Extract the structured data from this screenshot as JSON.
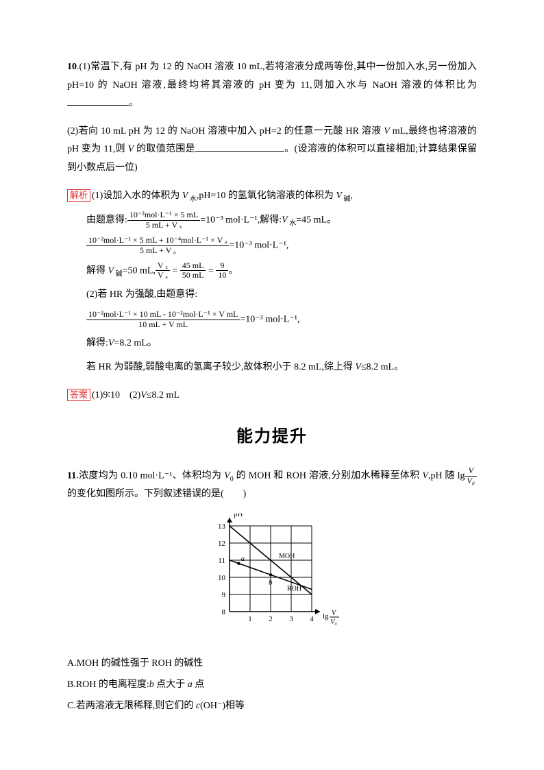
{
  "q10": {
    "number": "10",
    "part1_text": ".(1)常温下,有 pH 为 12 的 NaOH 溶液 10 mL,若将溶液分成两等份,其中一份加入水,另一份加入 pH=10 的 NaOH 溶液,最终均将其溶液的 pH 变为 11,则加入水与 NaOH 溶液的体积比为",
    "part1_suffix": "。",
    "part2_text": "(2)若向 10 mL pH 为 12 的 NaOH 溶液中加入 pH=2 的任意一元酸 HR 溶液 ",
    "part2_text2": " mL,最终也将溶液的 pH 变为 11,则 ",
    "part2_text3": " 的取值范围是",
    "part2_suffix": "。(设溶液的体积可以直接相加;计算结果保留到小数点后一位)",
    "analysis_label": "解析",
    "analysis_intro": "(1)设加入水的体积为 ",
    "analysis_intro2": ",pH=10 的氢氧化钠溶液的体积为 ",
    "step1_pre": "由题意得:",
    "frac1_num": "10⁻²mol·L⁻¹ × 5 mL",
    "frac1_den": "5 mL + V ₓ",
    "step1_post": "=10⁻³ mol·L⁻¹,解得:",
    "step1_result": "=45 mL。",
    "frac2_num": "10⁻²mol·L⁻¹ × 5 mL + 10⁻⁴mol·L⁻¹ × V ₐ",
    "frac2_den": "5 mL + V ₐ",
    "step2_post": "=10⁻³ mol·L⁻¹,",
    "step3_pre": "解得 ",
    "step3_mid": "=50 mL,",
    "frac3a_num": "V ₓ",
    "frac3a_den": "V ₐ",
    "frac3b_num": "45 mL",
    "frac3b_den": "50 mL",
    "frac3c_num": "9",
    "frac3c_den": "10",
    "step3_end": "。",
    "step4": "(2)若 HR 为强酸,由题意得:",
    "frac4_num": "10⁻²mol·L⁻¹ × 10 mL - 10⁻²mol·L⁻¹ × V mL",
    "frac4_den": "10 mL + V mL",
    "step4_post": "=10⁻³ mol·L⁻¹,",
    "step5": "解得:",
    "step5_val": "=8.2 mL。",
    "step6": "若 HR 为弱酸,弱酸电离的氢离子较少,故体积小于 8.2 mL,综上得 ",
    "step6_end": "≤8.2 mL。",
    "answer_label": "答案",
    "answer_text": "(1)9∶10　(2)",
    "answer_text2": "≤8.2 mL"
  },
  "section_title": "能力提升",
  "q11": {
    "number": "11",
    "text1": ".浓度均为 0.10 mol·L⁻¹、体积均为 ",
    "text2": " 的 MOH 和 ROH 溶液,分别加水稀释至体积 ",
    "text3": ",pH 随 lg",
    "text4": "的变化如图所示。下列叙述错误的是(　　)",
    "frac_num": "V",
    "frac_den": "V₀",
    "chart": {
      "width": 190,
      "height": 180,
      "y_label": "pH",
      "y_ticks": [
        8,
        9,
        10,
        11,
        12,
        13
      ],
      "x_ticks": [
        1,
        2,
        3,
        4
      ],
      "x_label_pre": "lg",
      "x_label_num": "V",
      "x_label_den": "V₀",
      "line1_label": "MOH",
      "line2_label": "ROH",
      "point_a": "a",
      "point_b": "b",
      "axis_color": "#000000",
      "grid_color": "#000000",
      "line_color": "#000000",
      "bg": "#ffffff"
    },
    "options": {
      "a": "A.MOH 的碱性强于 ROH 的碱性",
      "b_pre": "B.ROH 的电离程度:",
      "b_mid": " 点大于 ",
      "b_end": " 点",
      "c_pre": "C.若两溶液无限稀释,则它们的 ",
      "c_end": "(OH⁻)相等"
    }
  }
}
